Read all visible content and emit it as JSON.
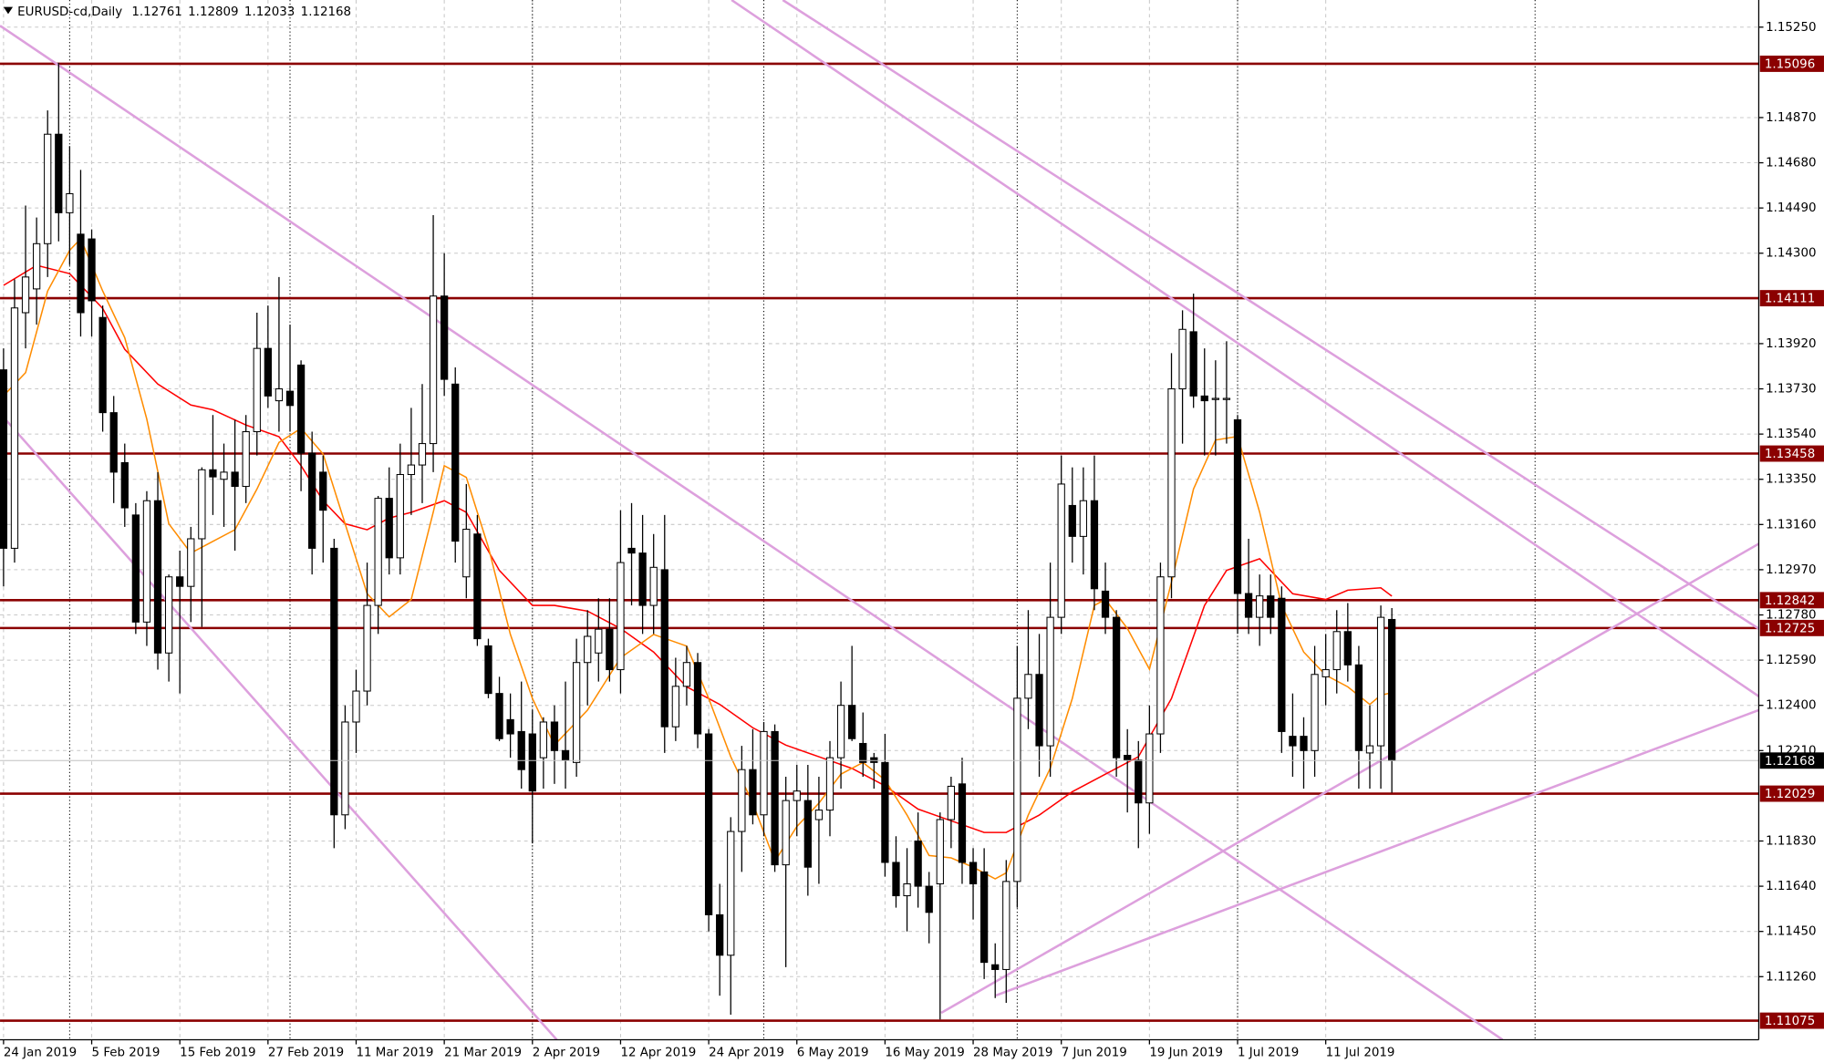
{
  "chart_data": {
    "type": "candlestick",
    "title": "EURUSD-cd,Daily",
    "header_values": [
      1.12761,
      1.12809,
      1.12033,
      1.12168
    ],
    "categories": [
      "24 Jan 2019",
      null,
      null,
      null,
      null,
      null,
      null,
      null,
      "5 Feb 2019",
      null,
      null,
      null,
      null,
      null,
      null,
      null,
      "15 Feb 2019",
      null,
      null,
      null,
      null,
      null,
      null,
      null,
      "27 Feb 2019",
      null,
      null,
      null,
      null,
      null,
      null,
      null,
      "11 Mar 2019",
      null,
      null,
      null,
      null,
      null,
      null,
      null,
      "21 Mar 2019",
      null,
      null,
      null,
      null,
      null,
      null,
      null,
      "2 Apr 2019",
      null,
      null,
      null,
      null,
      null,
      null,
      null,
      "12 Apr 2019",
      null,
      null,
      null,
      null,
      null,
      null,
      null,
      "24 Apr 2019",
      null,
      null,
      null,
      null,
      null,
      null,
      null,
      "6 May 2019",
      null,
      null,
      null,
      null,
      null,
      null,
      null,
      "16 May 2019",
      null,
      null,
      null,
      null,
      null,
      null,
      null,
      "28 May 2019",
      null,
      null,
      null,
      null,
      null,
      null,
      null,
      "7 Jun 2019",
      null,
      null,
      null,
      null,
      null,
      null,
      null,
      "19 Jun 2019",
      null,
      null,
      null,
      null,
      null,
      null,
      null,
      "1 Jul 2019",
      null,
      null,
      null,
      null,
      null,
      null,
      null,
      "11 Jul 2019",
      null,
      null,
      null,
      null,
      null,
      null
    ],
    "open": [
      1.1381,
      1.1306,
      1.1405,
      1.1415,
      1.1434,
      1.148,
      1.1447,
      1.1438,
      1.1436,
      1.1403,
      1.1363,
      1.1342,
      1.132,
      1.1275,
      1.1326,
      1.1262,
      1.1294,
      1.129,
      1.131,
      1.1339,
      1.1335,
      1.1338,
      1.1332,
      1.1355,
      1.139,
      1.1368,
      1.1372,
      1.1383,
      1.1346,
      1.1338,
      1.1306,
      1.1194,
      1.1233,
      1.1246,
      1.1282,
      1.1327,
      1.1302,
      1.1337,
      1.1341,
      1.135,
      1.1412,
      1.1375,
      1.1294,
      1.1312,
      1.1265,
      1.1245,
      1.1234,
      1.1229,
      1.1228,
      1.1218,
      1.1233,
      1.1221,
      1.1216,
      1.1258,
      1.1262,
      1.1272,
      1.1255,
      1.1306,
      1.1304,
      1.1282,
      1.1297,
      1.1231,
      1.1248,
      1.1258,
      1.1228,
      1.1152,
      1.1135,
      1.1187,
      1.1213,
      1.1194,
      1.1229,
      1.1173,
      1.12,
      1.12,
      1.1192,
      1.1196,
      1.1218,
      1.124,
      1.1224,
      1.1218,
      1.1216,
      1.1174,
      1.116,
      1.1183,
      1.1164,
      1.1165,
      1.1192,
      1.1207,
      1.1174,
      1.117,
      1.1131,
      1.1129,
      1.1166,
      1.1243,
      1.1253,
      1.1223,
      1.1277,
      1.1324,
      1.1311,
      1.1326,
      1.1288,
      1.1277,
      1.1219,
      1.1217,
      1.1199,
      1.1228,
      1.1294,
      1.1373,
      1.1397,
      1.137,
      1.1369,
      1.1369,
      1.136,
      1.1287,
      1.1277,
      1.1286,
      1.1285,
      1.1227,
      1.1227,
      1.1221,
      1.1252,
      1.1255,
      1.1271,
      1.1257,
      1.122,
      1.1223,
      1.12761
    ],
    "high": [
      1.139,
      1.1419,
      1.145,
      1.1445,
      1.149,
      1.151,
      1.1475,
      1.1465,
      1.144,
      1.1408,
      1.137,
      1.135,
      1.1325,
      1.133,
      1.1338,
      1.1295,
      1.1305,
      1.1315,
      1.134,
      1.1362,
      1.135,
      1.136,
      1.1362,
      1.1405,
      1.1408,
      1.142,
      1.14,
      1.1385,
      1.1355,
      1.1345,
      1.131,
      1.124,
      1.1255,
      1.13,
      1.1328,
      1.134,
      1.135,
      1.1365,
      1.1375,
      1.1446,
      1.143,
      1.1382,
      1.1333,
      1.132,
      1.1268,
      1.1252,
      1.1245,
      1.125,
      1.1238,
      1.1235,
      1.124,
      1.125,
      1.1268,
      1.128,
      1.1285,
      1.1285,
      1.1322,
      1.1325,
      1.132,
      1.1312,
      1.132,
      1.126,
      1.1265,
      1.1262,
      1.123,
      1.1165,
      1.1193,
      1.1223,
      1.123,
      1.1233,
      1.1232,
      1.121,
      1.1215,
      1.1215,
      1.121,
      1.1225,
      1.125,
      1.1265,
      1.1237,
      1.122,
      1.1228,
      1.1185,
      1.118,
      1.1195,
      1.117,
      1.1195,
      1.121,
      1.1218,
      1.118,
      1.118,
      1.114,
      1.1175,
      1.1265,
      1.128,
      1.127,
      1.13,
      1.1345,
      1.134,
      1.134,
      1.1345,
      1.13,
      1.128,
      1.123,
      1.1225,
      1.124,
      1.13,
      1.1388,
      1.1406,
      1.1413,
      1.139,
      1.1385,
      1.1393,
      1.1362,
      1.131,
      1.1295,
      1.1295,
      1.129,
      1.1245,
      1.1235,
      1.1265,
      1.127,
      1.128,
      1.1283,
      1.1265,
      1.124,
      1.1282,
      1.12809
    ],
    "low": [
      1.129,
      1.13,
      1.139,
      1.14,
      1.142,
      1.1435,
      1.1425,
      1.1395,
      1.1395,
      1.1355,
      1.1325,
      1.1315,
      1.127,
      1.1265,
      1.1255,
      1.125,
      1.1245,
      1.1275,
      1.1273,
      1.132,
      1.1315,
      1.1305,
      1.1325,
      1.1345,
      1.1365,
      1.1355,
      1.1355,
      1.133,
      1.1295,
      1.13,
      1.118,
      1.1188,
      1.122,
      1.124,
      1.127,
      1.1295,
      1.1295,
      1.132,
      1.1325,
      1.1338,
      1.137,
      1.13,
      1.1285,
      1.1265,
      1.1243,
      1.1225,
      1.1218,
      1.1205,
      1.1182,
      1.1205,
      1.1207,
      1.1205,
      1.121,
      1.124,
      1.125,
      1.125,
      1.1245,
      1.1282,
      1.127,
      1.127,
      1.122,
      1.1225,
      1.124,
      1.1222,
      1.1145,
      1.1118,
      1.111,
      1.117,
      1.119,
      1.1185,
      1.117,
      1.113,
      1.1185,
      1.116,
      1.1165,
      1.1185,
      1.1205,
      1.1225,
      1.121,
      1.1205,
      1.1168,
      1.1155,
      1.1145,
      1.1155,
      1.114,
      1.1108,
      1.118,
      1.1165,
      1.115,
      1.1125,
      1.1117,
      1.1115,
      1.1155,
      1.123,
      1.121,
      1.121,
      1.127,
      1.13,
      1.1295,
      1.128,
      1.127,
      1.121,
      1.1195,
      1.118,
      1.1186,
      1.122,
      1.1285,
      1.135,
      1.1365,
      1.1345,
      1.1345,
      1.135,
      1.127,
      1.127,
      1.1265,
      1.127,
      1.122,
      1.121,
      1.1205,
      1.121,
      1.124,
      1.1245,
      1.125,
      1.1205,
      1.1205,
      1.1205,
      1.12033
    ],
    "close": [
      1.1306,
      1.1407,
      1.142,
      1.1434,
      1.148,
      1.1447,
      1.1455,
      1.1405,
      1.141,
      1.1363,
      1.1338,
      1.1323,
      1.1275,
      1.1326,
      1.1262,
      1.1294,
      1.129,
      1.131,
      1.1339,
      1.1336,
      1.1338,
      1.1332,
      1.1355,
      1.139,
      1.137,
      1.1373,
      1.1366,
      1.1346,
      1.1306,
      1.1322,
      1.1194,
      1.1233,
      1.1246,
      1.1282,
      1.1327,
      1.1302,
      1.1337,
      1.1341,
      1.135,
      1.1412,
      1.1377,
      1.1309,
      1.1314,
      1.1268,
      1.1245,
      1.1226,
      1.1228,
      1.1213,
      1.1204,
      1.1233,
      1.1221,
      1.1217,
      1.1258,
      1.1269,
      1.1272,
      1.1255,
      1.13,
      1.1304,
      1.1282,
      1.1298,
      1.1231,
      1.1248,
      1.1258,
      1.1228,
      1.1152,
      1.1135,
      1.1187,
      1.1213,
      1.1194,
      1.1229,
      1.1173,
      1.12,
      1.1204,
      1.1172,
      1.1196,
      1.1218,
      1.124,
      1.1226,
      1.1216,
      1.1216,
      1.1174,
      1.116,
      1.1165,
      1.1164,
      1.1153,
      1.1192,
      1.1206,
      1.1174,
      1.1165,
      1.1132,
      1.1129,
      1.1166,
      1.1243,
      1.1253,
      1.1223,
      1.1277,
      1.1333,
      1.1311,
      1.1326,
      1.1289,
      1.1277,
      1.1218,
      1.1217,
      1.1199,
      1.1228,
      1.1294,
      1.1373,
      1.1398,
      1.137,
      1.1368,
      1.1369,
      1.1369,
      1.1287,
      1.1277,
      1.1286,
      1.1277,
      1.1229,
      1.1223,
      1.1221,
      1.1253,
      1.1255,
      1.1271,
      1.1257,
      1.1221,
      1.1223,
      1.1277,
      1.12168
    ],
    "up_color": "#ffffff",
    "down_color": "#000000",
    "xlim": [
      -0.32,
      159.3
    ],
    "ylim": [
      1.10995,
      1.15364
    ],
    "yticks": [
      {
        "value": 1.1525,
        "label": "1.15250"
      },
      {
        "value": 1.1487,
        "label": "1.14870"
      },
      {
        "value": 1.1468,
        "label": "1.14680"
      },
      {
        "value": 1.1449,
        "label": "1.14490"
      },
      {
        "value": 1.143,
        "label": "1.14300"
      },
      {
        "value": 1.1392,
        "label": "1.13920"
      },
      {
        "value": 1.1373,
        "label": "1.13730"
      },
      {
        "value": 1.1354,
        "label": "1.13540"
      },
      {
        "value": 1.1335,
        "label": "1.13350"
      },
      {
        "value": 1.1316,
        "label": "1.13160"
      },
      {
        "value": 1.1297,
        "label": "1.12970"
      },
      {
        "value": 1.1278,
        "label": "1.12780"
      },
      {
        "value": 1.1259,
        "label": "1.12590"
      },
      {
        "value": 1.124,
        "label": "1.12400"
      },
      {
        "value": 1.1221,
        "label": "1.12210"
      },
      {
        "value": 1.1183,
        "label": "1.11830"
      },
      {
        "value": 1.1164,
        "label": "1.11640"
      },
      {
        "value": 1.1145,
        "label": "1.11450"
      },
      {
        "value": 1.1126,
        "label": "1.11260"
      }
    ],
    "grid": true,
    "separators": [
      6,
      26,
      48,
      69,
      92,
      112,
      139
    ],
    "lines": [
      {
        "color": "#ff0000",
        "x": [
          0,
          3,
          6,
          9,
          11,
          14,
          17,
          19,
          22,
          25,
          27,
          29,
          31,
          33,
          35,
          37,
          40,
          42,
          45,
          48,
          50,
          53,
          56,
          59,
          62,
          65,
          68,
          71,
          74,
          77,
          80,
          83,
          86,
          89,
          91,
          94,
          97,
          100,
          103,
          106,
          109,
          111,
          114,
          117,
          120,
          122,
          125,
          126
        ],
        "values": [
          1.14165,
          1.14249,
          1.14214,
          1.14068,
          1.13896,
          1.1375,
          1.13662,
          1.13642,
          1.13578,
          1.13529,
          1.13407,
          1.1326,
          1.13163,
          1.13138,
          1.13187,
          1.13211,
          1.1326,
          1.13211,
          1.12967,
          1.1282,
          1.1282,
          1.12796,
          1.12723,
          1.12624,
          1.12478,
          1.12404,
          1.12306,
          1.12233,
          1.12184,
          1.12135,
          1.12062,
          1.11964,
          1.11915,
          1.11866,
          1.11866,
          1.11939,
          1.12037,
          1.12111,
          1.12184,
          1.12429,
          1.1282,
          1.12967,
          1.13016,
          1.12869,
          1.12845,
          1.12884,
          1.12894,
          1.12859
        ]
      },
      {
        "color": "#ff8c00",
        "x": [
          0,
          2,
          4,
          6,
          7,
          9,
          11,
          13,
          15,
          17,
          19,
          21,
          23,
          25,
          27,
          29,
          31,
          33,
          35,
          37,
          39,
          40,
          42,
          44,
          46,
          48,
          50,
          53,
          56,
          59,
          62,
          64,
          66,
          68,
          70,
          72,
          74,
          76,
          78,
          80,
          82,
          84,
          86,
          88,
          90,
          91,
          93,
          95,
          97,
          99,
          100,
          102,
          104,
          106,
          108,
          110,
          112,
          114,
          116,
          118,
          120,
          122,
          124,
          125,
          126
        ],
        "values": [
          1.13701,
          1.13798,
          1.14141,
          1.14312,
          1.14361,
          1.14141,
          1.13945,
          1.13603,
          1.13163,
          1.1304,
          1.13089,
          1.13138,
          1.13309,
          1.13505,
          1.13564,
          1.13456,
          1.13163,
          1.12869,
          1.12772,
          1.12845,
          1.13212,
          1.13407,
          1.13358,
          1.13065,
          1.12698,
          1.12429,
          1.12233,
          1.1238,
          1.126,
          1.12698,
          1.12649,
          1.12429,
          1.12184,
          1.11989,
          1.11745,
          1.11891,
          1.11989,
          1.12111,
          1.1216,
          1.12087,
          1.11939,
          1.11769,
          1.11759,
          1.1172,
          1.11671,
          1.11696,
          1.11939,
          1.12136,
          1.12429,
          1.1282,
          1.12845,
          1.12723,
          1.12552,
          1.12918,
          1.13309,
          1.13515,
          1.1353,
          1.13212,
          1.1282,
          1.12624,
          1.12527,
          1.12478,
          1.12404,
          1.12443,
          1.12453
        ]
      }
    ],
    "levels": {
      "color": "#8b0000",
      "values": [
        1.15096,
        1.14111,
        1.13458,
        1.12842,
        1.12725,
        1.12029,
        1.11075
      ]
    },
    "trendlines": {
      "color": "#dda0dd",
      "items": [
        {
          "x": [
            -0.32,
            136.05
          ],
          "values": [
            1.15256,
            1.10995
          ]
        },
        {
          "x": [
            -0.32,
            50.21
          ],
          "values": [
            1.13627,
            1.10995
          ]
        },
        {
          "x": [
            66.07,
            159.3
          ],
          "values": [
            1.15364,
            1.12438
          ]
        },
        {
          "x": [
            70.72,
            159.3
          ],
          "values": [
            1.15364,
            1.12722
          ]
        },
        {
          "x": [
            85.1,
            159.3
          ],
          "values": [
            1.11108,
            1.13079
          ]
        },
        {
          "x": [
            90.06,
            159.3
          ],
          "values": [
            1.11181,
            1.1238
          ]
        }
      ]
    },
    "last_price": 1.12168
  }
}
